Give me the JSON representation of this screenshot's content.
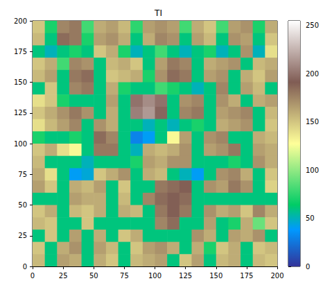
{
  "chart_data": {
    "type": "heatmap",
    "title": "TI",
    "x": [
      5,
      15,
      25,
      35,
      45,
      55,
      65,
      75,
      85,
      95,
      105,
      115,
      125,
      135,
      145,
      155,
      165,
      175,
      185,
      195
    ],
    "y": [
      195,
      185,
      175,
      165,
      155,
      145,
      135,
      125,
      115,
      105,
      95,
      85,
      75,
      65,
      55,
      45,
      35,
      25,
      15,
      5
    ],
    "cells": [
      [
        150,
        70,
        175,
        180,
        80,
        160,
        165,
        155,
        75,
        165,
        170,
        165,
        80,
        160,
        150,
        80,
        165,
        170,
        70,
        160
      ],
      [
        155,
        60,
        185,
        180,
        70,
        165,
        170,
        160,
        60,
        160,
        175,
        170,
        60,
        165,
        155,
        60,
        170,
        165,
        60,
        150
      ],
      [
        60,
        50,
        60,
        70,
        60,
        150,
        160,
        70,
        50,
        60,
        80,
        60,
        50,
        60,
        70,
        50,
        60,
        170,
        50,
        140
      ],
      [
        150,
        160,
        80,
        175,
        170,
        60,
        155,
        160,
        150,
        60,
        165,
        180,
        175,
        60,
        160,
        165,
        170,
        60,
        155,
        160
      ],
      [
        155,
        165,
        60,
        180,
        185,
        60,
        150,
        155,
        160,
        70,
        170,
        185,
        180,
        60,
        165,
        170,
        60,
        160,
        150,
        165
      ],
      [
        60,
        150,
        60,
        175,
        180,
        60,
        160,
        70,
        60,
        60,
        80,
        70,
        60,
        50,
        60,
        175,
        60,
        165,
        155,
        60
      ],
      [
        140,
        150,
        70,
        60,
        60,
        60,
        165,
        60,
        200,
        210,
        200,
        60,
        170,
        175,
        60,
        170,
        160,
        60,
        160,
        165
      ],
      [
        150,
        160,
        170,
        180,
        170,
        60,
        160,
        60,
        205,
        215,
        195,
        60,
        175,
        180,
        60,
        165,
        170,
        175,
        60,
        155
      ],
      [
        140,
        155,
        165,
        175,
        60,
        170,
        160,
        60,
        60,
        50,
        60,
        50,
        60,
        70,
        60,
        160,
        165,
        170,
        60,
        150
      ],
      [
        70,
        60,
        60,
        70,
        60,
        185,
        175,
        60,
        30,
        40,
        60,
        130,
        165,
        60,
        170,
        175,
        60,
        60,
        160,
        155
      ],
      [
        150,
        160,
        140,
        130,
        60,
        180,
        180,
        60,
        50,
        160,
        155,
        160,
        170,
        60,
        165,
        170,
        180,
        60,
        165,
        160
      ],
      [
        155,
        60,
        60,
        60,
        50,
        60,
        60,
        60,
        70,
        165,
        160,
        170,
        170,
        60,
        60,
        60,
        70,
        60,
        170,
        160
      ],
      [
        160,
        140,
        60,
        40,
        45,
        150,
        160,
        170,
        60,
        160,
        155,
        60,
        50,
        40,
        60,
        170,
        175,
        160,
        60,
        150
      ],
      [
        165,
        150,
        60,
        160,
        155,
        165,
        60,
        150,
        60,
        60,
        180,
        185,
        190,
        60,
        170,
        165,
        180,
        170,
        60,
        145
      ],
      [
        60,
        60,
        60,
        165,
        160,
        160,
        60,
        155,
        60,
        175,
        185,
        190,
        185,
        60,
        60,
        60,
        60,
        60,
        60,
        60
      ],
      [
        150,
        160,
        60,
        155,
        150,
        160,
        60,
        160,
        155,
        60,
        180,
        190,
        180,
        60,
        170,
        160,
        165,
        150,
        175,
        160
      ],
      [
        155,
        150,
        60,
        60,
        150,
        60,
        60,
        60,
        60,
        60,
        175,
        185,
        60,
        60,
        165,
        60,
        70,
        160,
        90,
        150
      ],
      [
        60,
        150,
        60,
        165,
        60,
        160,
        60,
        150,
        160,
        60,
        60,
        60,
        60,
        170,
        160,
        60,
        165,
        160,
        170,
        60
      ],
      [
        150,
        60,
        160,
        170,
        60,
        165,
        155,
        60,
        150,
        165,
        170,
        160,
        60,
        160,
        70,
        150,
        160,
        60,
        150,
        155
      ],
      [
        155,
        60,
        165,
        160,
        60,
        160,
        150,
        60,
        155,
        160,
        165,
        60,
        150,
        165,
        60,
        155,
        160,
        60,
        155,
        150
      ]
    ],
    "xlim": [
      0,
      200
    ],
    "xticks": [
      0,
      25,
      50,
      75,
      100,
      125,
      150,
      175,
      200
    ],
    "ylim": [
      0,
      200
    ],
    "yticks": [
      0,
      25,
      50,
      75,
      100,
      125,
      150,
      175,
      200
    ],
    "colorbar": {
      "range": [
        0,
        255
      ],
      "ticks": [
        0,
        50,
        100,
        150,
        200,
        250
      ]
    }
  }
}
